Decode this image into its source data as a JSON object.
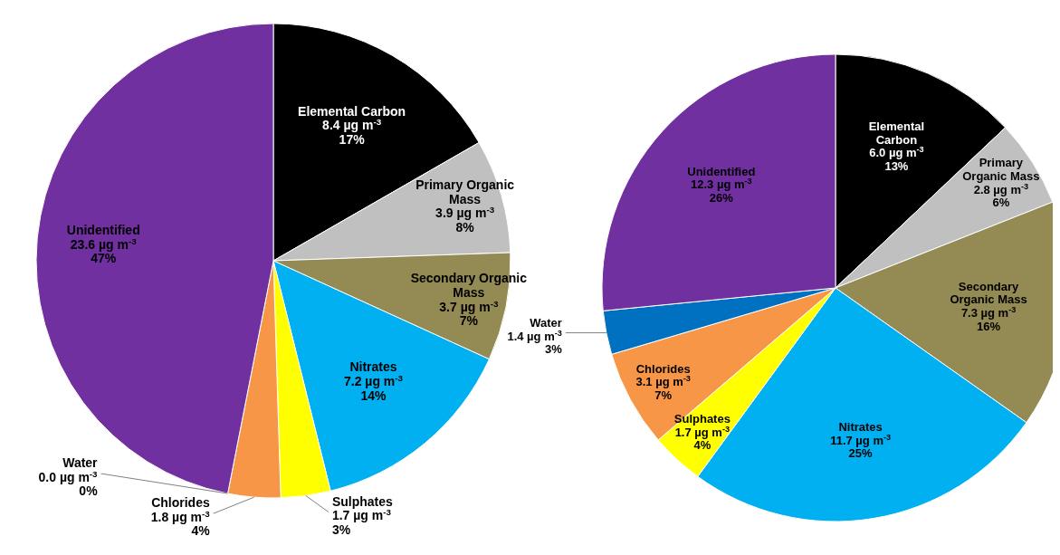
{
  "chart_data": [
    {
      "type": "pie",
      "categories": [
        "Elemental Carbon",
        "Primary Organic Mass",
        "Secondary Organic Mass",
        "Nitrates",
        "Sulphates",
        "Chlorides",
        "Water",
        "Unidentified"
      ],
      "values": [
        8.4,
        3.9,
        3.7,
        7.2,
        1.7,
        1.8,
        0.0,
        23.6
      ],
      "colors": [
        "#000000",
        "#c0c0c0",
        "#948a54",
        "#00b0f0",
        "#ffff00",
        "#f79646",
        "#0070c0",
        "#7030a0"
      ],
      "value_labels": [
        "8.4  µg m$^{-3}$\n17%",
        "3.9  µg m$^{-3}$\n8%",
        "3.7  µg m$^{-3}$\n7%",
        "7.2  µg m$^{-3}$\n14%",
        "1.7  µg m$^{-3}$\n3%",
        "1.8  µg m$^{-3}$\n4%",
        "0.0  µg m$^{-3}$\n0%",
        "23.6  µg m$^{-3}$\n47%"
      ]
    },
    {
      "type": "pie",
      "categories": [
        "Elemental Carbon",
        "Primary Organic Mass",
        "Secondary Organic Mass",
        "Nitrates",
        "Sulphates",
        "Chlorides",
        "Water",
        "Unidentified"
      ],
      "values": [
        6.0,
        2.8,
        7.3,
        11.7,
        1.7,
        3.1,
        1.4,
        12.3
      ],
      "colors": [
        "#000000",
        "#c0c0c0",
        "#948a54",
        "#00b0f0",
        "#ffff00",
        "#f79646",
        "#0070c0",
        "#7030a0"
      ],
      "value_labels": [
        "6.0  µg m$^{-3}$\n13%",
        "2.8  µg m$^{-3}$\n6%",
        "7.3  µg m$^{-3}$\n16%",
        "11.7  µg m$^{-3}$\n25%",
        "1.7  µg m$^{-3}$\n4%",
        "3.1  µg m$^{-3}$\n7%",
        "1.4  µg m$^{-3}$\n3%",
        "12.3  µg m$^{-3}$\n26%"
      ]
    }
  ]
}
